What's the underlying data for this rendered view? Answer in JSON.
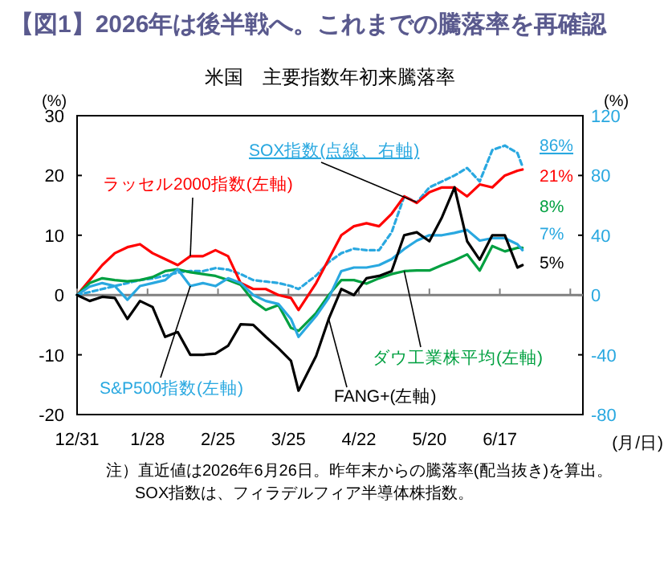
{
  "chart_data": {
    "type": "line",
    "title": "【図1】2026年は後半戦へ。これまでの騰落率を再確認",
    "subtitle": "米国　主要指数年初来騰落率",
    "ylabel": "(%)",
    "y2label": "(%)",
    "xlabel": "(月/日)",
    "annotations": [
      "注）直近値は2026年6月26日。昨年末からの騰落率(配当抜き)を算出。",
      "SOX指数は、フィラデルフィア半導体株指数。"
    ],
    "x": [
      "2025-12-31",
      "2026-01-05",
      "2026-01-10",
      "2026-01-15",
      "2026-01-20",
      "2026-01-25",
      "2026-01-30",
      "2026-02-04",
      "2026-02-09",
      "2026-02-14",
      "2026-02-19",
      "2026-02-24",
      "2026-03-01",
      "2026-03-06",
      "2026-03-11",
      "2026-03-16",
      "2026-03-21",
      "2026-03-26",
      "2026-03-29",
      "2026-04-05",
      "2026-04-10",
      "2026-04-15",
      "2026-04-20",
      "2026-04-25",
      "2026-04-30",
      "2026-05-05",
      "2026-05-10",
      "2026-05-15",
      "2026-05-20",
      "2026-05-25",
      "2026-05-30",
      "2026-06-04",
      "2026-06-09",
      "2026-06-14",
      "2026-06-19",
      "2026-06-24",
      "2026-06-26"
    ],
    "xlim": [
      "2025-12-31",
      "2026-07-20"
    ],
    "xticks": [
      {
        "value": "2025-12-31",
        "label": "12/31"
      },
      {
        "value": "2026-01-28",
        "label": "1/28"
      },
      {
        "value": "2026-02-25",
        "label": "2/25"
      },
      {
        "value": "2026-03-25",
        "label": "3/25"
      },
      {
        "value": "2026-04-22",
        "label": "4/22"
      },
      {
        "value": "2026-05-20",
        "label": "5/20"
      },
      {
        "value": "2026-06-17",
        "label": "6/17"
      },
      {
        "value": "2026-07-15",
        "label": null
      }
    ],
    "ylim": [
      -20,
      30
    ],
    "yticks": [
      -20,
      -10,
      0,
      10,
      20,
      30
    ],
    "y2lim": [
      -80,
      120
    ],
    "y2ticks": [
      -80,
      -40,
      0,
      40,
      80,
      120
    ],
    "grid": false,
    "legend": false,
    "ref_lines": [
      {
        "axis": "y",
        "value": 0,
        "color": "#808080"
      }
    ],
    "marker": "none",
    "series": [
      {
        "name": "SOX指数(点線、右軸)",
        "color": "#29a8e0",
        "axis": "y2",
        "line_style": "dashed",
        "values": [
          0,
          2,
          4,
          6,
          8,
          10,
          11,
          13,
          15,
          16,
          16,
          18,
          17,
          14,
          10,
          9,
          8,
          6,
          4,
          13,
          22,
          28,
          31,
          30,
          30,
          42,
          66,
          62,
          72,
          76,
          80,
          85,
          76,
          97,
          100,
          95,
          86
        ],
        "value_labels": [
          null,
          null,
          null,
          null,
          null,
          null,
          null,
          null,
          null,
          null,
          null,
          null,
          null,
          null,
          null,
          null,
          null,
          null,
          null,
          null,
          null,
          null,
          null,
          null,
          null,
          null,
          null,
          null,
          null,
          null,
          null,
          null,
          null,
          null,
          null,
          null,
          "86%"
        ]
      },
      {
        "name": "ラッセル2000指数(左軸)",
        "color": "#ff0000",
        "line_style": "solid",
        "values": [
          0,
          2.5,
          5,
          7,
          8,
          8.5,
          7,
          6,
          5,
          6.5,
          6.5,
          7.5,
          6.5,
          2,
          1,
          1,
          0,
          -0.5,
          -2.5,
          2,
          6,
          10,
          11.5,
          12,
          11.5,
          13.6,
          16.5,
          15.4,
          17.2,
          18,
          18,
          16.5,
          18.5,
          18,
          20,
          20.8,
          21
        ],
        "value_labels": [
          null,
          null,
          null,
          null,
          null,
          null,
          null,
          null,
          null,
          null,
          null,
          null,
          null,
          null,
          null,
          null,
          null,
          null,
          null,
          null,
          null,
          null,
          null,
          null,
          null,
          null,
          null,
          null,
          null,
          null,
          null,
          null,
          null,
          null,
          null,
          null,
          "21%"
        ]
      },
      {
        "name": "ダウ工業株平均(左軸)",
        "color": "#00a040",
        "line_style": "solid",
        "values": [
          0,
          2,
          2.8,
          2.5,
          2.3,
          2.5,
          3,
          4,
          4.3,
          3.8,
          3.5,
          3.2,
          2.5,
          1.7,
          -1,
          -2.5,
          -1.7,
          -5.5,
          -6,
          -3,
          0,
          2.5,
          2.5,
          1.9,
          2.8,
          3.5,
          4,
          4.1,
          4.1,
          5,
          5.8,
          6.8,
          4.1,
          8.2,
          7.3,
          7.9,
          7.9
        ],
        "value_labels": [
          null,
          null,
          null,
          null,
          null,
          null,
          null,
          null,
          null,
          null,
          null,
          null,
          null,
          null,
          null,
          null,
          null,
          null,
          null,
          null,
          null,
          null,
          null,
          null,
          null,
          null,
          null,
          null,
          null,
          null,
          null,
          null,
          null,
          null,
          null,
          null,
          "8%"
        ]
      },
      {
        "name": "S&P500指数(左軸)",
        "color": "#29a8e0",
        "line_style": "solid",
        "values": [
          0,
          1.4,
          2,
          1.5,
          -0.8,
          1.5,
          2,
          2.5,
          4.3,
          1.5,
          2,
          1.5,
          2.8,
          2,
          0,
          -1,
          -1.5,
          -4,
          -7,
          -3.5,
          -0.5,
          4,
          4.6,
          4.6,
          5,
          6,
          7.7,
          9.1,
          10,
          10,
          10.4,
          10.9,
          9.1,
          9.5,
          9.5,
          8.5,
          7.5
        ],
        "value_labels": [
          null,
          null,
          null,
          null,
          null,
          null,
          null,
          null,
          null,
          null,
          null,
          null,
          null,
          null,
          null,
          null,
          null,
          null,
          null,
          null,
          null,
          null,
          null,
          null,
          null,
          null,
          null,
          null,
          null,
          null,
          null,
          null,
          null,
          null,
          null,
          null,
          "7%"
        ]
      },
      {
        "name": "FANG+(左軸)",
        "color": "#000000",
        "line_style": "solid",
        "values": [
          0,
          -1,
          -0.3,
          -0.5,
          -4,
          -1,
          -2,
          -7,
          -6.2,
          -10,
          -10,
          -9.8,
          -8.5,
          -4.9,
          -5,
          -7,
          -8.9,
          -11,
          -16,
          -10.2,
          -4,
          1,
          0,
          2.8,
          3.2,
          4,
          10,
          10.5,
          9,
          13,
          18,
          9,
          5.9,
          10,
          10,
          4.6,
          5
        ],
        "value_labels": [
          null,
          null,
          null,
          null,
          null,
          null,
          null,
          null,
          null,
          null,
          null,
          null,
          null,
          null,
          null,
          null,
          null,
          null,
          null,
          null,
          null,
          null,
          null,
          null,
          null,
          null,
          null,
          null,
          null,
          null,
          null,
          null,
          null,
          null,
          null,
          null,
          "5%"
        ]
      }
    ]
  }
}
